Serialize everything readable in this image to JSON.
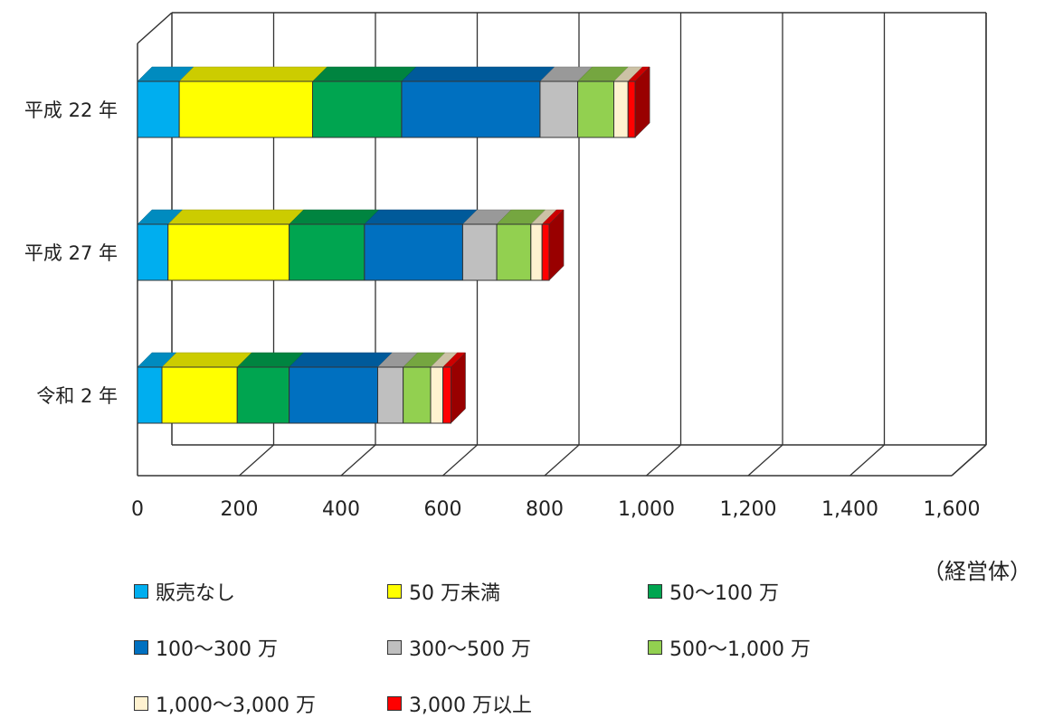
{
  "chart_data": {
    "type": "bar",
    "orientation": "horizontal",
    "stacked": true,
    "three_d": true,
    "categories": [
      "平成 22 年",
      "平成 27 年",
      "令和 2 年"
    ],
    "series": [
      {
        "name": "販売なし",
        "color": "#00aeef",
        "values": [
          82,
          60,
          48
        ]
      },
      {
        "name": "50 万未満",
        "color": "#ffff00",
        "values": [
          262,
          238,
          148
        ]
      },
      {
        "name": "50〜100 万",
        "color": "#00a550",
        "values": [
          175,
          148,
          102
        ]
      },
      {
        "name": "100〜300 万",
        "color": "#0070c0",
        "values": [
          272,
          193,
          174
        ]
      },
      {
        "name": "300〜500 万",
        "color": "#bfbfbf",
        "values": [
          74,
          67,
          50
        ]
      },
      {
        "name": "500〜1,000 万",
        "color": "#92d050",
        "values": [
          71,
          67,
          54
        ]
      },
      {
        "name": "1,000〜3,000 万",
        "color": "#fff2d0",
        "values": [
          28,
          22,
          24
        ]
      },
      {
        "name": "3,000 万以上",
        "color": "#ff0000",
        "values": [
          14,
          14,
          16
        ]
      }
    ],
    "xticks": [
      "0",
      "200",
      "400",
      "600",
      "800",
      "1,000",
      "1,200",
      "1,400",
      "1,600"
    ],
    "xlim": [
      0,
      1600
    ],
    "xlabel": "",
    "ylabel": "",
    "unit_label": "（経営体）",
    "grid": true,
    "legend_position": "bottom"
  }
}
